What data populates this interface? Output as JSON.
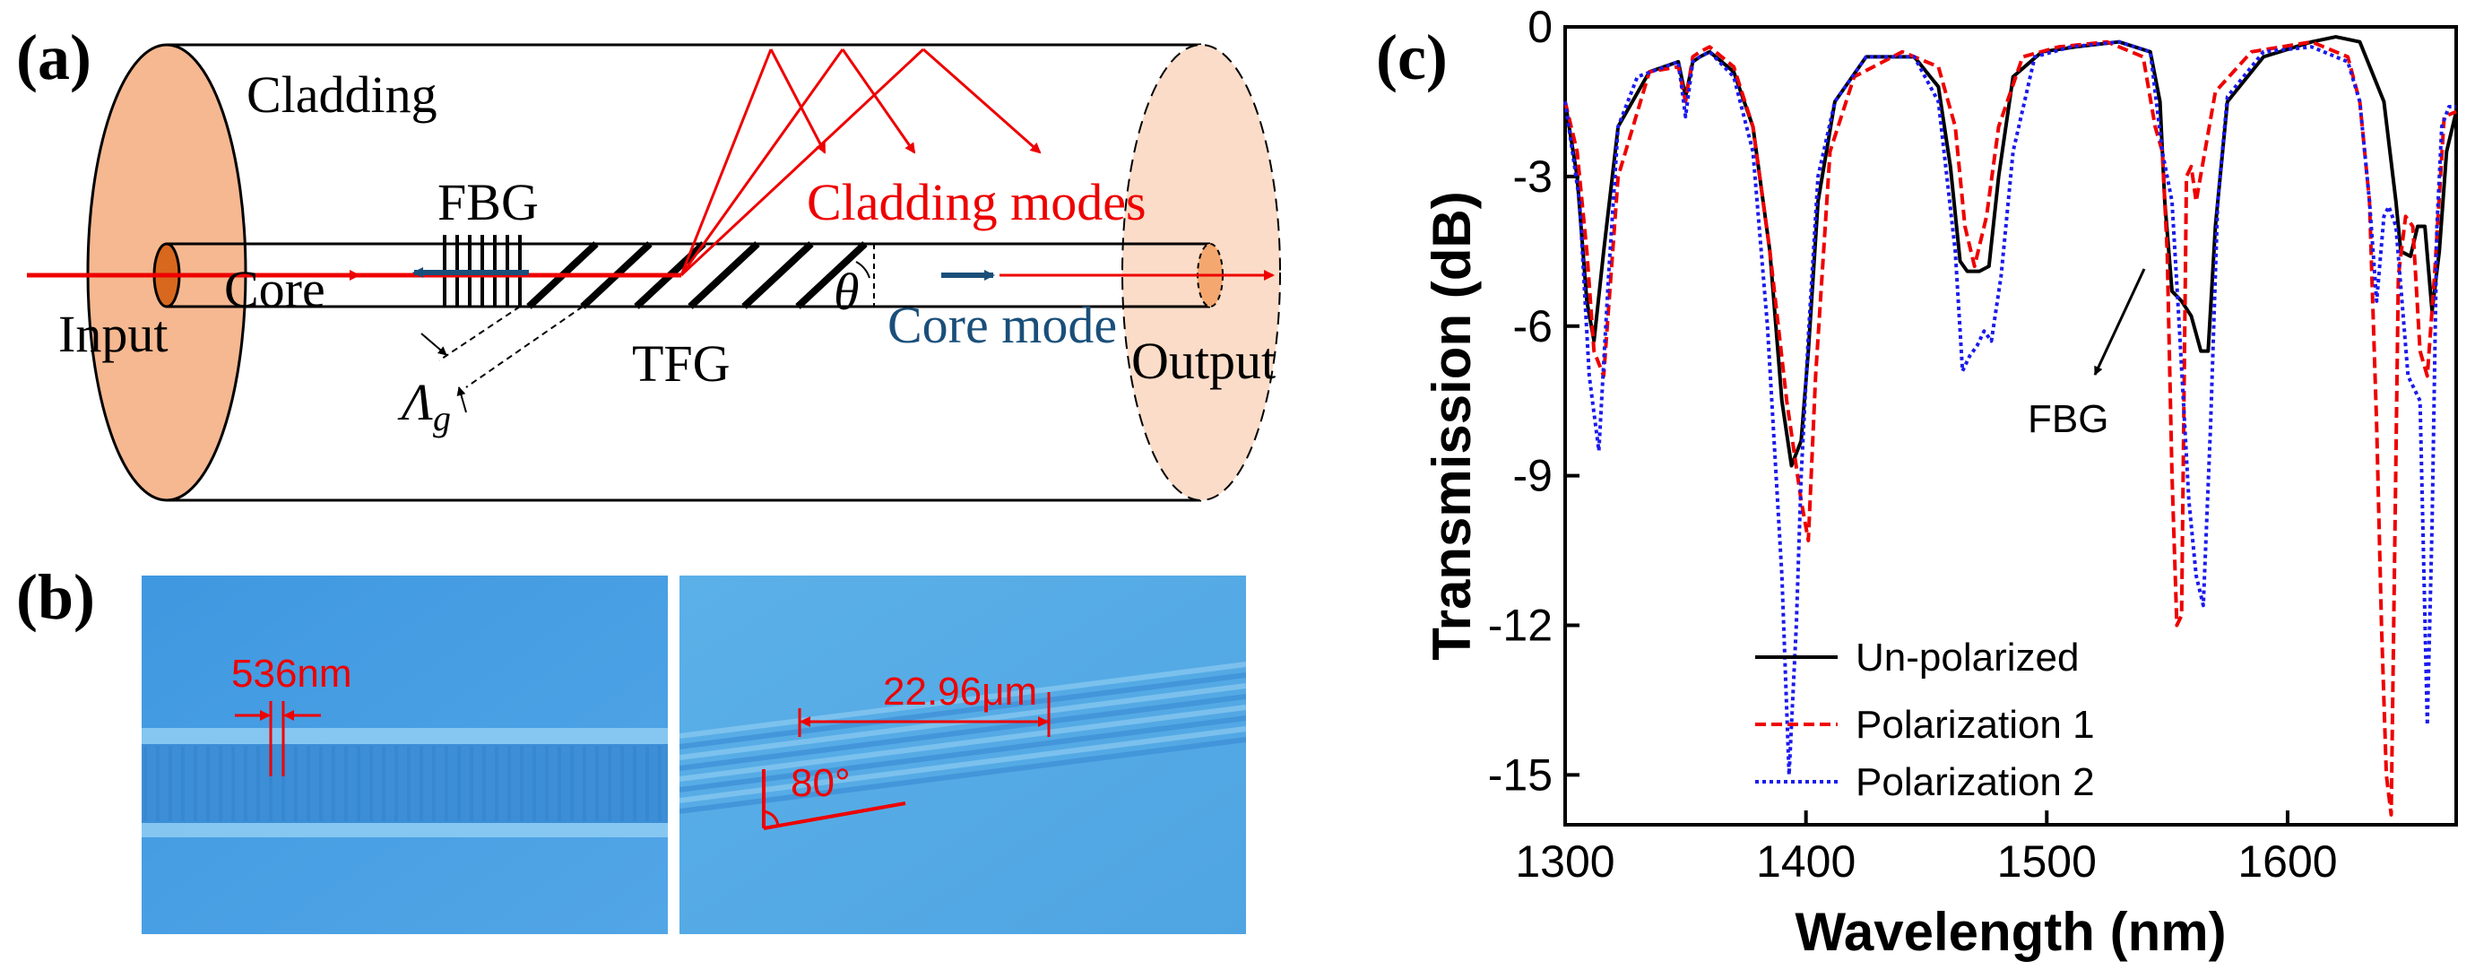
{
  "panels": {
    "a": {
      "label": "(a)",
      "cladding": "Cladding",
      "fbg": "FBG",
      "cladding_modes": "Cladding modes",
      "core": "Core",
      "input": "Input",
      "theta": "θ",
      "core_mode": "Core mode",
      "tfg": "TFG",
      "output": "Output",
      "lambda_main": "Λ",
      "lambda_sub": "g"
    },
    "b": {
      "label": "(b)",
      "fbg_period": "536nm",
      "tfg_period": "22.96μm",
      "tfg_angle": "80°"
    },
    "c": {
      "label": "(c)",
      "fbg_annotation": "FBG"
    }
  },
  "colors": {
    "red": "#ee0000",
    "blue": "#1a4f7a",
    "fiber_end": "#f7c9a8",
    "micro_bg": "#4aa0e2",
    "unpolarized": "#000000",
    "pol1": "#ee0000",
    "pol2": "#1a1aee"
  },
  "chart_data": {
    "type": "line",
    "xlabel": "Wavelength (nm)",
    "ylabel": "Transmission (dB)",
    "xlim": [
      1300,
      1670
    ],
    "ylim": [
      -16,
      0
    ],
    "xticks": [
      "1300",
      "1400",
      "1500",
      "1600"
    ],
    "yticks": [
      "0",
      "-3",
      "-6",
      "-9",
      "-12",
      "-15"
    ],
    "legend_position": "bottom-center",
    "series": [
      {
        "name": "Un-polarized",
        "x": [
          1300,
          1305,
          1309,
          1312,
          1316,
          1322,
          1335,
          1347,
          1350,
          1353,
          1356,
          1360,
          1370,
          1378,
          1385,
          1390,
          1394,
          1398,
          1401,
          1405,
          1412,
          1425,
          1445,
          1455,
          1460,
          1464,
          1467,
          1472,
          1476,
          1480,
          1486,
          1498,
          1512,
          1530,
          1543,
          1547,
          1549,
          1552,
          1556,
          1560,
          1564,
          1567,
          1570,
          1575,
          1590,
          1610,
          1620,
          1630,
          1640,
          1645,
          1647,
          1651,
          1654,
          1657,
          1660,
          1663,
          1666,
          1670
        ],
        "y": [
          -1.5,
          -3,
          -5.5,
          -6.3,
          -4.5,
          -2,
          -0.9,
          -0.7,
          -1.4,
          -0.7,
          -0.6,
          -0.5,
          -0.9,
          -2,
          -4.5,
          -7.5,
          -8.8,
          -8.3,
          -6.5,
          -3.5,
          -1.5,
          -0.6,
          -0.6,
          -1.2,
          -2.8,
          -4.7,
          -4.9,
          -4.9,
          -4.8,
          -3,
          -1,
          -0.5,
          -0.4,
          -0.3,
          -0.5,
          -1.5,
          -3.5,
          -5.3,
          -5.5,
          -5.8,
          -6.5,
          -6.5,
          -4,
          -1.5,
          -0.6,
          -0.3,
          -0.2,
          -0.3,
          -1.5,
          -3.5,
          -4.5,
          -4.6,
          -4,
          -4,
          -5.7,
          -4.5,
          -2.5,
          -1.7
        ]
      },
      {
        "name": "Polarization 1",
        "x": [
          1300,
          1305,
          1309,
          1312,
          1316,
          1322,
          1335,
          1347,
          1350,
          1353,
          1356,
          1360,
          1370,
          1378,
          1385,
          1392,
          1398,
          1401,
          1404,
          1410,
          1420,
          1440,
          1455,
          1462,
          1466,
          1470,
          1475,
          1480,
          1490,
          1505,
          1525,
          1540,
          1545,
          1548,
          1550,
          1552,
          1554,
          1556,
          1558,
          1560,
          1562,
          1570,
          1585,
          1610,
          1625,
          1630,
          1634,
          1637,
          1639,
          1641,
          1643,
          1646,
          1649,
          1652,
          1655,
          1658,
          1661,
          1665,
          1670
        ],
        "y": [
          -1.5,
          -2.5,
          -4.5,
          -6.5,
          -7,
          -3,
          -0.9,
          -0.8,
          -1.5,
          -0.6,
          -0.5,
          -0.4,
          -0.8,
          -2,
          -4.5,
          -7.5,
          -9.5,
          -10.3,
          -7,
          -2.5,
          -1,
          -0.5,
          -0.8,
          -2,
          -4,
          -4.8,
          -3.8,
          -2,
          -0.6,
          -0.4,
          -0.3,
          -0.6,
          -2,
          -2.5,
          -4.5,
          -9,
          -12,
          -11.8,
          -3,
          -2.8,
          -3.5,
          -1.3,
          -0.5,
          -0.3,
          -0.6,
          -1.5,
          -3.5,
          -8,
          -12,
          -15,
          -15.8,
          -5,
          -3.8,
          -4,
          -6.5,
          -7,
          -5,
          -1.8,
          -1.7
        ]
      },
      {
        "name": "Polarization 2",
        "x": [
          1300,
          1306,
          1310,
          1314,
          1318,
          1322,
          1330,
          1347,
          1350,
          1353,
          1356,
          1360,
          1370,
          1378,
          1384,
          1390,
          1393,
          1396,
          1398,
          1401,
          1405,
          1412,
          1425,
          1445,
          1455,
          1462,
          1465,
          1468,
          1471,
          1474,
          1477,
          1481,
          1486,
          1495,
          1510,
          1530,
          1543,
          1548,
          1550,
          1552,
          1555,
          1559,
          1562,
          1565,
          1568,
          1571,
          1575,
          1590,
          1610,
          1625,
          1630,
          1634,
          1637,
          1640,
          1642,
          1645,
          1650,
          1655,
          1658,
          1660,
          1662,
          1664,
          1667,
          1670
        ],
        "y": [
          -1.5,
          -3.5,
          -7,
          -8.5,
          -5,
          -2,
          -1,
          -0.7,
          -1.8,
          -0.7,
          -0.6,
          -0.5,
          -1,
          -2.5,
          -6,
          -11,
          -15,
          -12,
          -9,
          -6.2,
          -3,
          -1.5,
          -0.6,
          -0.6,
          -1.5,
          -4.5,
          -6.9,
          -6.6,
          -6.4,
          -6.1,
          -6.3,
          -5,
          -2.5,
          -0.6,
          -0.4,
          -0.3,
          -0.5,
          -2.5,
          -3,
          -3.5,
          -6,
          -9.5,
          -11,
          -11.6,
          -8,
          -3.5,
          -1.4,
          -0.5,
          -0.4,
          -0.7,
          -1.5,
          -3.5,
          -5.5,
          -3.8,
          -3.6,
          -4,
          -7,
          -7.5,
          -14,
          -10,
          -4,
          -2,
          -1.6,
          -1.6
        ]
      }
    ]
  }
}
